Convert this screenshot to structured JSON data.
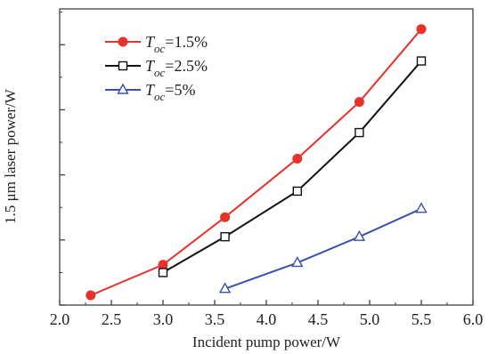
{
  "chart_data": {
    "type": "line",
    "xlabel": "Incident pump power/W",
    "ylabel": "1.5 μm laser power/W",
    "xlim": [
      2.0,
      6.0
    ],
    "xticks": [
      "2.0",
      "2.5",
      "3.0",
      "3.5",
      "4.0",
      "4.5",
      "5.0",
      "5.5",
      "6.0"
    ],
    "ylim": [
      0,
      4.55
    ],
    "y_tick_labels_shown": false,
    "grid": false,
    "legend_position": "top-left",
    "series": [
      {
        "name_main": "T",
        "name_sub": "oc",
        "name_tail": "=1.5%",
        "color": "#e8312a",
        "marker": "filled-circle",
        "x": [
          2.3,
          3.0,
          3.6,
          4.3,
          4.9,
          5.5
        ],
        "y": [
          0.15,
          0.62,
          1.35,
          2.25,
          3.12,
          4.24
        ]
      },
      {
        "name_main": "T",
        "name_sub": "oc",
        "name_tail": "=2.5%",
        "color": "#111111",
        "marker": "open-square",
        "x": [
          3.0,
          3.6,
          4.3,
          4.9,
          5.5
        ],
        "y": [
          0.5,
          1.05,
          1.75,
          2.65,
          3.75
        ]
      },
      {
        "name_main": "T",
        "name_sub": "oc",
        "name_tail": "=5%",
        "color": "#3a4fb0",
        "marker": "open-triangle",
        "x": [
          3.6,
          4.3,
          4.9,
          5.5
        ],
        "y": [
          0.25,
          0.65,
          1.05,
          1.48
        ]
      }
    ]
  }
}
